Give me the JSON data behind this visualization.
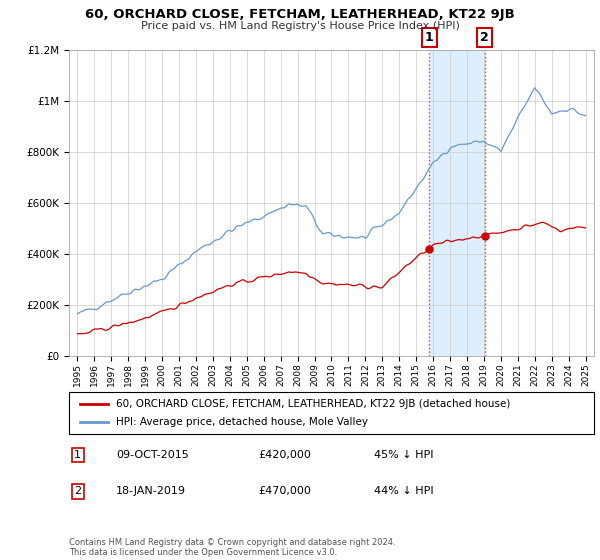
{
  "title": "60, ORCHARD CLOSE, FETCHAM, LEATHERHEAD, KT22 9JB",
  "subtitle": "Price paid vs. HM Land Registry's House Price Index (HPI)",
  "legend_label_red": "60, ORCHARD CLOSE, FETCHAM, LEATHERHEAD, KT22 9JB (detached house)",
  "legend_label_blue": "HPI: Average price, detached house, Mole Valley",
  "footnote": "Contains HM Land Registry data © Crown copyright and database right 2024.\nThis data is licensed under the Open Government Licence v3.0.",
  "transaction1_date": "09-OCT-2015",
  "transaction1_price": "£420,000",
  "transaction1_note": "45% ↓ HPI",
  "transaction2_date": "18-JAN-2019",
  "transaction2_price": "£470,000",
  "transaction2_note": "44% ↓ HPI",
  "transaction1_x": 2015.77,
  "transaction1_y_red": 420000,
  "transaction2_x": 2019.05,
  "transaction2_y_red": 470000,
  "shade1_x0": 2015.77,
  "shade1_x1": 2019.05,
  "ylim_min": 0,
  "ylim_max": 1200000,
  "xlim_min": 1994.5,
  "xlim_max": 2025.5,
  "red_color": "#cc0000",
  "blue_color": "#6699cc",
  "shade_color": "#ddeeff",
  "grid_color": "#cccccc",
  "background_color": "#ffffff"
}
